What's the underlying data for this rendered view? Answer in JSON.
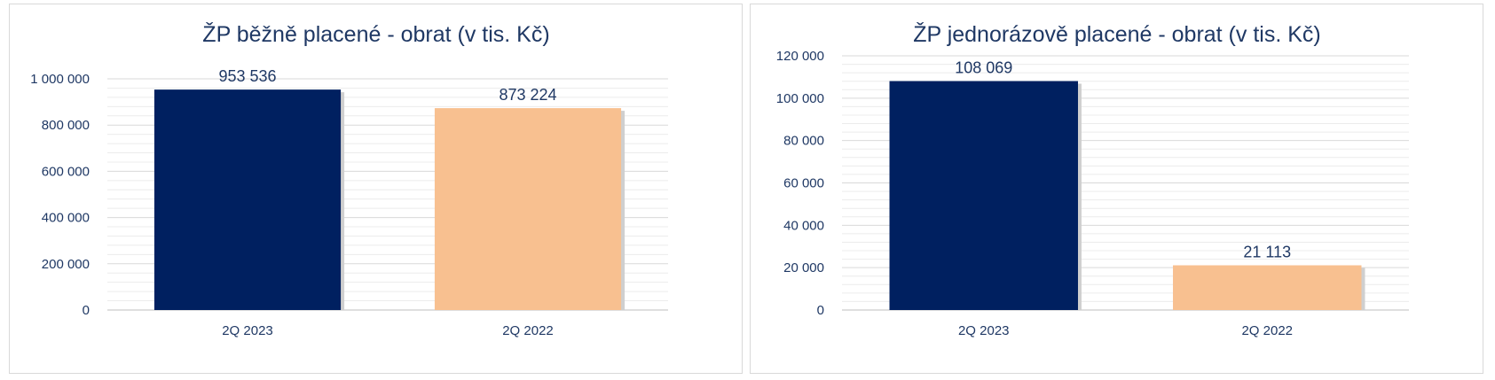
{
  "chart_data": [
    {
      "type": "bar",
      "title": "ŽP běžně placené  - obrat (v tis. Kč)",
      "categories": [
        "2Q 2023",
        "2Q 2022"
      ],
      "values": [
        953536,
        873224
      ],
      "data_labels": [
        "953 536",
        "873 224"
      ],
      "bar_colors": [
        "#002060",
        "#f8c090"
      ],
      "ylim": [
        0,
        1000000
      ],
      "yticks": [
        0,
        200000,
        400000,
        600000,
        800000,
        1000000
      ],
      "ytick_labels": [
        "0",
        "200 000",
        "400 000",
        "600 000",
        "800 000",
        "1 000 000"
      ],
      "grid": true,
      "legend": "none"
    },
    {
      "type": "bar",
      "title": "ŽP jednorázově placené   - obrat (v tis. Kč)",
      "categories": [
        "2Q 2023",
        "2Q 2022"
      ],
      "values": [
        108069,
        21113
      ],
      "data_labels": [
        "108 069",
        "21 113"
      ],
      "bar_colors": [
        "#002060",
        "#f8c090"
      ],
      "ylim": [
        0,
        120000
      ],
      "yticks": [
        0,
        20000,
        40000,
        60000,
        80000,
        100000,
        120000
      ],
      "ytick_labels": [
        "0",
        "20 000",
        "40 000",
        "60 000",
        "80 000",
        "100 000",
        "120 000"
      ],
      "grid": true,
      "legend": "none"
    }
  ]
}
